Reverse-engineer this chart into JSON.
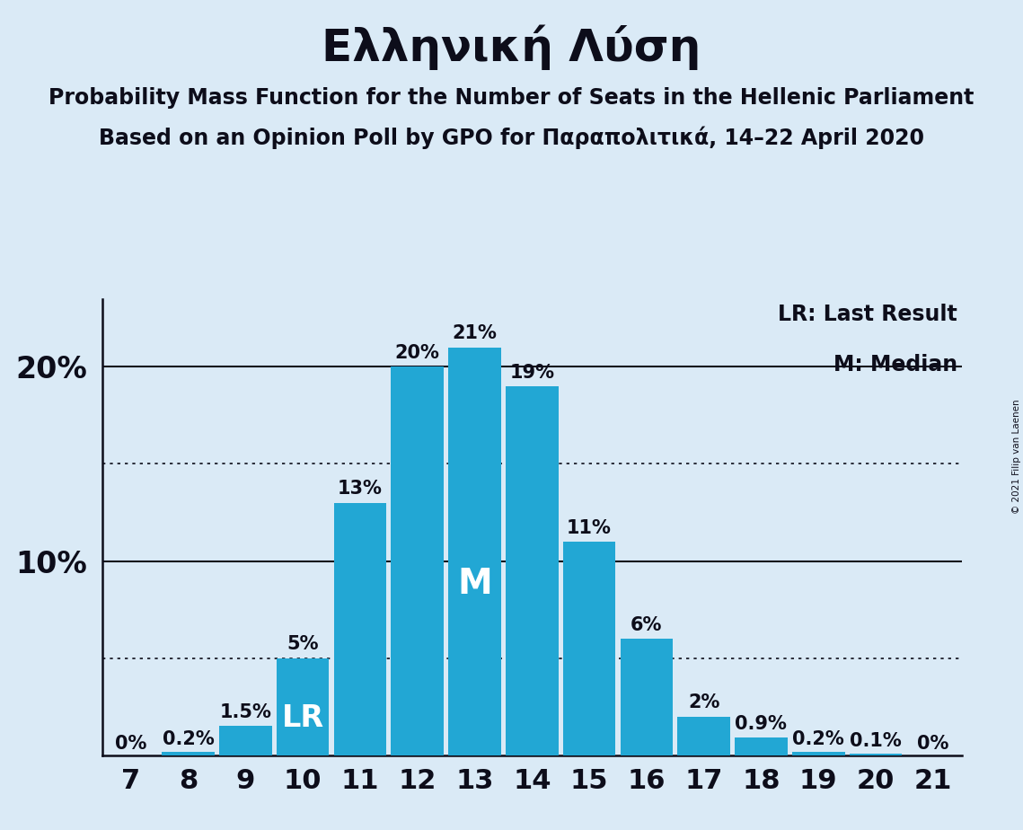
{
  "title": "Ελληνική Λύση",
  "subtitle1": "Probability Mass Function for the Number of Seats in the Hellenic Parliament",
  "subtitle2": "Based on an Opinion Poll by GPO for Παραπολιτικά, 14–22 April 2020",
  "copyright": "© 2021 Filip van Laenen",
  "seats": [
    7,
    8,
    9,
    10,
    11,
    12,
    13,
    14,
    15,
    16,
    17,
    18,
    19,
    20,
    21
  ],
  "probabilities": [
    0.0,
    0.2,
    1.5,
    5.0,
    13.0,
    20.0,
    21.0,
    19.0,
    11.0,
    6.0,
    2.0,
    0.9,
    0.2,
    0.1,
    0.0
  ],
  "bar_labels": [
    "0%",
    "0.2%",
    "1.5%",
    "5%",
    "13%",
    "20%",
    "21%",
    "19%",
    "11%",
    "6%",
    "2%",
    "0.9%",
    "0.2%",
    "0.1%",
    "0%"
  ],
  "bar_color": "#22a7d4",
  "background_color": "#daeaf6",
  "text_color": "#0d0d1a",
  "lr_seat": 10,
  "median_seat": 13,
  "legend_text1": "LR: Last Result",
  "legend_text2": "M: Median",
  "ylim": [
    0,
    23.5
  ],
  "solid_gridlines": [
    10,
    20
  ],
  "dotted_gridlines": [
    5,
    15
  ],
  "title_fontsize": 36,
  "subtitle_fontsize": 17,
  "bar_label_fontsize": 15,
  "ytick_fontsize": 24,
  "xtick_fontsize": 22,
  "legend_fontsize": 17
}
